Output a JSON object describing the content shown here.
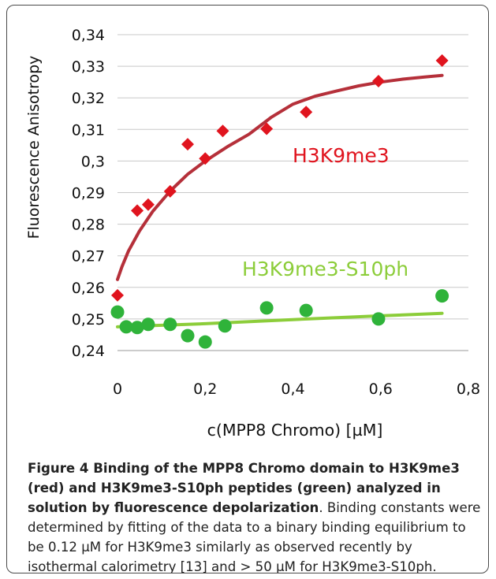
{
  "chart_data": {
    "type": "scatter",
    "xlabel": "c(MPP8 Chromo) [µM]",
    "ylabel": "Fluorescence Anisotropy",
    "xlim": [
      0,
      0.8
    ],
    "ylim": [
      0.24,
      0.34
    ],
    "x_ticks": [
      "0",
      "0,2",
      "0,4",
      "0,6",
      "0,8"
    ],
    "y_ticks": [
      "0,24",
      "0,25",
      "0,26",
      "0,27",
      "0,28",
      "0,29",
      "0,3",
      "0,31",
      "0,32",
      "0,33",
      "0,34"
    ],
    "grid": "horizontal",
    "series": [
      {
        "name": "H3K9me3",
        "color": "#e0141e",
        "fit_color": "#b5303a",
        "marker": "diamond",
        "x": [
          0,
          0.045,
          0.07,
          0.12,
          0.16,
          0.2,
          0.24,
          0.34,
          0.43,
          0.595,
          0.74
        ],
        "y": [
          0.2575,
          0.2843,
          0.2862,
          0.2904,
          0.3053,
          0.3008,
          0.3095,
          0.3102,
          0.3155,
          0.3253,
          0.3318
        ],
        "fit_x": [
          0,
          0.01,
          0.025,
          0.05,
          0.08,
          0.12,
          0.16,
          0.2,
          0.25,
          0.3,
          0.35,
          0.4,
          0.45,
          0.5,
          0.55,
          0.6,
          0.65,
          0.7,
          0.74
        ],
        "fit_y": [
          0.2625,
          0.2665,
          0.2715,
          0.2778,
          0.284,
          0.2905,
          0.2958,
          0.3,
          0.3045,
          0.3085,
          0.3138,
          0.318,
          0.3205,
          0.3222,
          0.3238,
          0.325,
          0.3259,
          0.3266,
          0.3271
        ]
      },
      {
        "name": "H3K9me3-S10ph",
        "color": "#2fb33a",
        "fit_color": "#8ccd3a",
        "marker": "circle",
        "x": [
          0,
          0.02,
          0.045,
          0.07,
          0.12,
          0.16,
          0.2,
          0.245,
          0.34,
          0.43,
          0.595,
          0.74
        ],
        "y": [
          0.2522,
          0.2475,
          0.2473,
          0.2483,
          0.2483,
          0.2447,
          0.2427,
          0.2478,
          0.2535,
          0.2527,
          0.25,
          0.2573
        ],
        "fit_x": [
          0,
          0.2,
          0.4,
          0.6,
          0.74
        ],
        "fit_y": [
          0.2475,
          0.2485,
          0.2498,
          0.251,
          0.2518
        ]
      }
    ]
  },
  "caption": {
    "title": "Figure 4 Binding of the MPP8 Chromo domain to H3K9me3 (red) and H3K9me3-S10ph peptides (green) analyzed in solution by fluorescence depolarization",
    "body": ". Binding constants were determined by fitting of the data to a binary binding equilibrium to be 0.12 µM for H3K9me3 similarly as observed recently by isothermal calorimetry [13] and > 50 µM for H3K9me3-S10ph."
  }
}
